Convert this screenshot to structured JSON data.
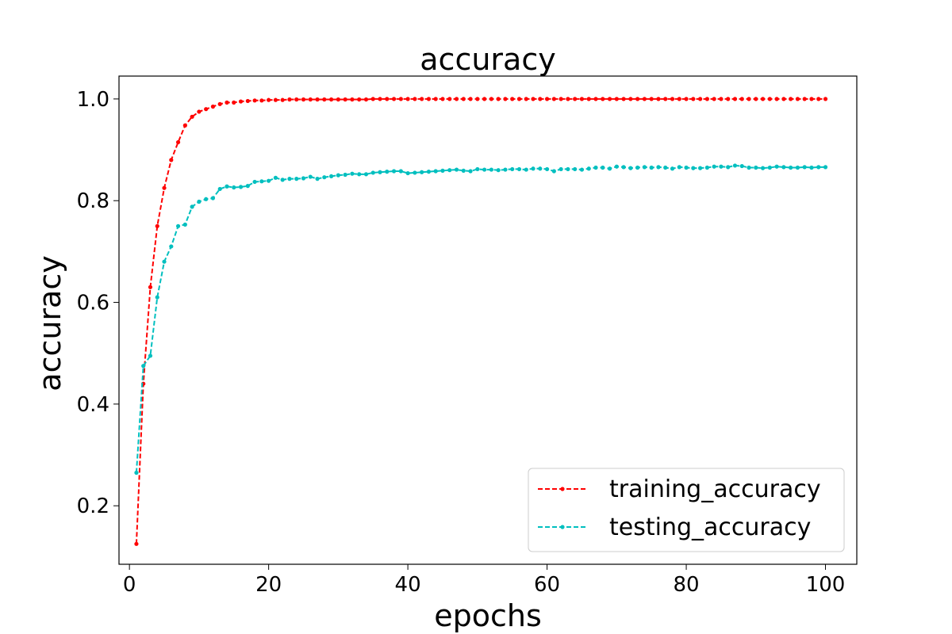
{
  "chart_data": {
    "type": "line",
    "title": "accuracy",
    "xlabel": "epochs",
    "ylabel": "accuracy",
    "xlim": [
      -1.5,
      104.5
    ],
    "ylim": [
      0.085,
      1.045
    ],
    "xticks": [
      0,
      20,
      40,
      60,
      80,
      100
    ],
    "yticks": [
      0.2,
      0.4,
      0.6,
      0.8,
      1.0
    ],
    "xtick_labels": [
      "0",
      "20",
      "40",
      "60",
      "80",
      "100"
    ],
    "ytick_labels": [
      "0.2",
      "0.4",
      "0.6",
      "0.8",
      "1.0"
    ],
    "grid": false,
    "legend_position": "lower-right",
    "x": [
      1,
      2,
      3,
      4,
      5,
      6,
      7,
      8,
      9,
      10,
      11,
      12,
      13,
      14,
      15,
      16,
      17,
      18,
      19,
      20,
      21,
      22,
      23,
      24,
      25,
      26,
      27,
      28,
      29,
      30,
      31,
      32,
      33,
      34,
      35,
      36,
      37,
      38,
      39,
      40,
      41,
      42,
      43,
      44,
      45,
      46,
      47,
      48,
      49,
      50,
      51,
      52,
      53,
      54,
      55,
      56,
      57,
      58,
      59,
      60,
      61,
      62,
      63,
      64,
      65,
      66,
      67,
      68,
      69,
      70,
      71,
      72,
      73,
      74,
      75,
      76,
      77,
      78,
      79,
      80,
      81,
      82,
      83,
      84,
      85,
      86,
      87,
      88,
      89,
      90,
      91,
      92,
      93,
      94,
      95,
      96,
      97,
      98,
      99,
      100
    ],
    "series": [
      {
        "name": "training_accuracy",
        "color": "#ff0000",
        "values": [
          0.125,
          0.44,
          0.63,
          0.75,
          0.825,
          0.88,
          0.915,
          0.948,
          0.965,
          0.975,
          0.98,
          0.985,
          0.99,
          0.993,
          0.993,
          0.995,
          0.996,
          0.997,
          0.997,
          0.998,
          0.998,
          0.998,
          0.999,
          0.999,
          0.999,
          0.999,
          0.999,
          0.999,
          0.999,
          0.999,
          0.999,
          0.999,
          0.999,
          0.999,
          1.0,
          1.0,
          1.0,
          1.0,
          1.0,
          1.0,
          1.0,
          1.0,
          1.0,
          1.0,
          1.0,
          1.0,
          1.0,
          1.0,
          1.0,
          1.0,
          1.0,
          1.0,
          1.0,
          1.0,
          1.0,
          1.0,
          1.0,
          1.0,
          1.0,
          1.0,
          1.0,
          1.0,
          1.0,
          1.0,
          1.0,
          1.0,
          1.0,
          1.0,
          1.0,
          1.0,
          1.0,
          1.0,
          1.0,
          1.0,
          1.0,
          1.0,
          1.0,
          1.0,
          1.0,
          1.0,
          1.0,
          1.0,
          1.0,
          1.0,
          1.0,
          1.0,
          1.0,
          1.0,
          1.0,
          1.0,
          1.0,
          1.0,
          1.0,
          1.0,
          1.0,
          1.0,
          1.0,
          1.0,
          1.0,
          1.0
        ]
      },
      {
        "name": "testing_accuracy",
        "color": "#00bfbf",
        "values": [
          0.265,
          0.475,
          0.495,
          0.61,
          0.68,
          0.71,
          0.75,
          0.753,
          0.788,
          0.798,
          0.803,
          0.805,
          0.823,
          0.828,
          0.826,
          0.827,
          0.829,
          0.837,
          0.838,
          0.839,
          0.845,
          0.841,
          0.843,
          0.843,
          0.844,
          0.847,
          0.843,
          0.846,
          0.848,
          0.85,
          0.851,
          0.853,
          0.852,
          0.852,
          0.855,
          0.856,
          0.857,
          0.858,
          0.858,
          0.854,
          0.855,
          0.856,
          0.857,
          0.858,
          0.859,
          0.86,
          0.861,
          0.859,
          0.858,
          0.862,
          0.861,
          0.861,
          0.86,
          0.861,
          0.862,
          0.862,
          0.861,
          0.863,
          0.863,
          0.862,
          0.858,
          0.862,
          0.862,
          0.862,
          0.861,
          0.863,
          0.865,
          0.865,
          0.863,
          0.867,
          0.866,
          0.864,
          0.865,
          0.866,
          0.865,
          0.866,
          0.865,
          0.863,
          0.866,
          0.865,
          0.864,
          0.864,
          0.865,
          0.867,
          0.867,
          0.866,
          0.869,
          0.868,
          0.865,
          0.865,
          0.864,
          0.865,
          0.867,
          0.866,
          0.865,
          0.865,
          0.866,
          0.865,
          0.866,
          0.866
        ]
      }
    ]
  }
}
